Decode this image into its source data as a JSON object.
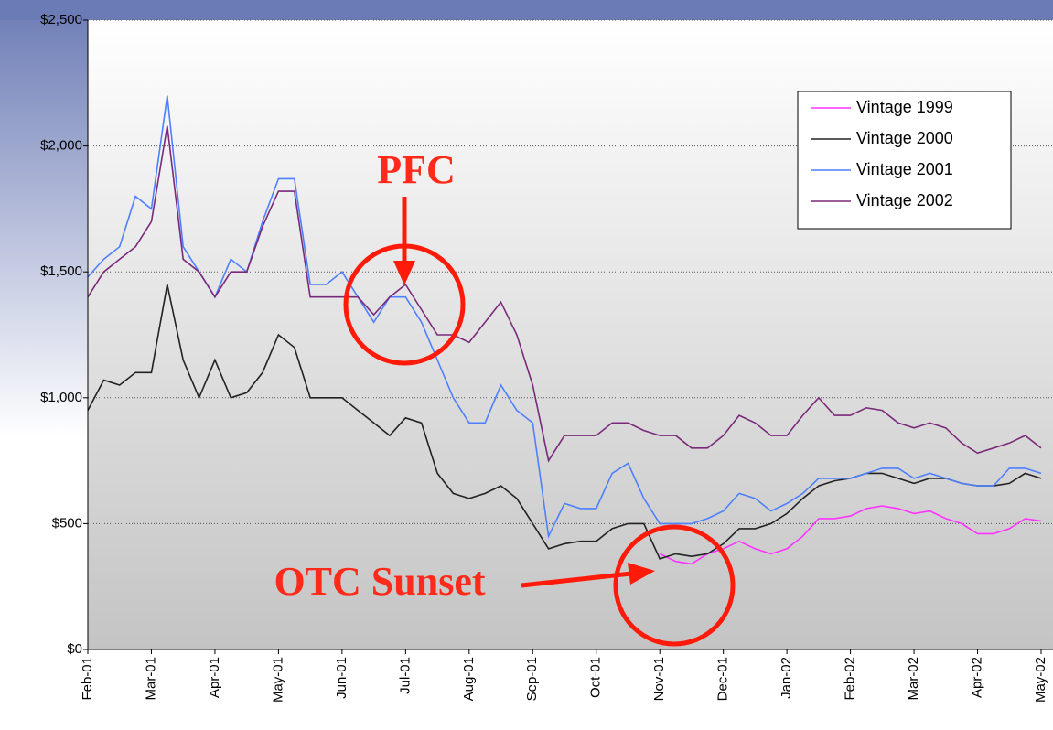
{
  "chart_data": {
    "type": "line",
    "categories": [
      "Feb-01",
      null,
      null,
      null,
      "Mar-01",
      null,
      null,
      null,
      "Apr-01",
      null,
      null,
      null,
      "May-01",
      null,
      null,
      null,
      "Jun-01",
      null,
      null,
      null,
      "Jul-01",
      null,
      null,
      null,
      "Aug-01",
      null,
      null,
      null,
      "Sep-01",
      null,
      null,
      null,
      "Oct-01",
      null,
      null,
      null,
      "Nov-01",
      null,
      null,
      null,
      "Dec-01",
      null,
      null,
      null,
      "Jan-02",
      null,
      null,
      null,
      "Feb-02",
      null,
      null,
      null,
      "Mar-02",
      null,
      null,
      null,
      "Apr-02",
      null,
      null,
      null,
      "May-02"
    ],
    "series": [
      {
        "name": "Vintage 1999",
        "color": "#ff33ff",
        "values": [
          null,
          null,
          null,
          null,
          null,
          null,
          null,
          null,
          null,
          null,
          null,
          null,
          null,
          null,
          null,
          null,
          null,
          null,
          null,
          null,
          null,
          null,
          null,
          null,
          null,
          null,
          null,
          null,
          null,
          null,
          null,
          null,
          null,
          null,
          null,
          null,
          380,
          350,
          340,
          380,
          400,
          430,
          400,
          380,
          400,
          450,
          520,
          520,
          530,
          560,
          570,
          560,
          540,
          550,
          520,
          500,
          460,
          460,
          480,
          520,
          510
        ]
      },
      {
        "name": "Vintage 2000",
        "color": "#222222",
        "values": [
          950,
          1070,
          1050,
          1100,
          1100,
          1450,
          1150,
          1000,
          1150,
          1000,
          1020,
          1100,
          1250,
          1200,
          1000,
          1000,
          1000,
          950,
          900,
          850,
          920,
          900,
          700,
          620,
          600,
          620,
          650,
          600,
          500,
          400,
          420,
          430,
          430,
          480,
          500,
          500,
          360,
          380,
          370,
          380,
          420,
          480,
          480,
          500,
          540,
          600,
          650,
          670,
          680,
          700,
          700,
          680,
          660,
          680,
          680,
          660,
          650,
          650,
          660,
          700,
          680
        ]
      },
      {
        "name": "Vintage 2001",
        "color": "#4d7fff",
        "values": [
          1480,
          1550,
          1600,
          1800,
          1750,
          2200,
          1600,
          1500,
          1400,
          1550,
          1500,
          1700,
          1870,
          1870,
          1450,
          1450,
          1500,
          1400,
          1300,
          1400,
          1400,
          1300,
          1150,
          1000,
          900,
          900,
          1050,
          950,
          900,
          450,
          580,
          560,
          560,
          700,
          740,
          600,
          500,
          500,
          500,
          520,
          550,
          620,
          600,
          550,
          580,
          620,
          680,
          680,
          680,
          700,
          720,
          720,
          680,
          700,
          680,
          660,
          650,
          650,
          720,
          720,
          700
        ]
      },
      {
        "name": "Vintage 2002",
        "color": "#7a2a7a",
        "values": [
          1400,
          1500,
          1550,
          1600,
          1700,
          2080,
          1550,
          1500,
          1400,
          1500,
          1500,
          1680,
          1820,
          1820,
          1400,
          1400,
          1400,
          1400,
          1330,
          1400,
          1450,
          1350,
          1250,
          1250,
          1220,
          1300,
          1380,
          1250,
          1050,
          750,
          850,
          850,
          850,
          900,
          900,
          870,
          850,
          850,
          800,
          800,
          850,
          930,
          900,
          850,
          850,
          930,
          1000,
          930,
          930,
          960,
          950,
          900,
          880,
          900,
          880,
          820,
          780,
          800,
          820,
          850,
          800
        ]
      }
    ],
    "ylim": [
      0,
      2500
    ],
    "yticks": [
      {
        "value": 0,
        "label": "$0"
      },
      {
        "value": 500,
        "label": "$500"
      },
      {
        "value": 1000,
        "label": "$1,000"
      },
      {
        "value": 1500,
        "label": "$1,500"
      },
      {
        "value": 2000,
        "label": "$2,000"
      },
      {
        "value": 2500,
        "label": "$2,500"
      }
    ],
    "grid": true,
    "legend": "upper right",
    "annotations": [
      "PFC",
      "OTC Sunset"
    ]
  }
}
